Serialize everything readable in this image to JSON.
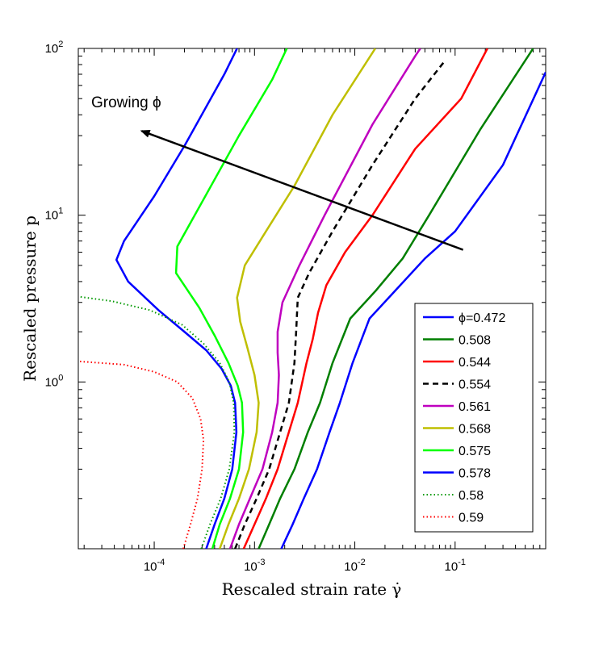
{
  "chart_data": {
    "type": "line",
    "xlabel": "Rescaled strain rate γ̇",
    "ylabel": "Rescaled pressure p",
    "x_scale": "log",
    "y_scale": "log",
    "xlim": [
      1.75e-05,
      0.8
    ],
    "ylim": [
      0.1,
      100
    ],
    "grid": false,
    "legend_position": "right-middle",
    "x_ticks": [
      {
        "value": 0.0001,
        "base": "10",
        "exp": "-4"
      },
      {
        "value": 0.001,
        "base": "10",
        "exp": "-3"
      },
      {
        "value": 0.01,
        "base": "10",
        "exp": "-2"
      },
      {
        "value": 0.1,
        "base": "10",
        "exp": "-1"
      }
    ],
    "y_ticks": [
      {
        "value": 1,
        "base": "10",
        "exp": "0"
      },
      {
        "value": 10,
        "base": "10",
        "exp": "1"
      },
      {
        "value": 100,
        "base": "10",
        "exp": "2"
      }
    ],
    "annotation": {
      "text": "Growing ϕ",
      "arrow_from": [
        0.12,
        6.2
      ],
      "arrow_to": [
        7.5e-05,
        32
      ]
    },
    "series": [
      {
        "name": "ϕ=0.472",
        "color": "#0000ff",
        "style": "solid",
        "points": [
          [
            0.00185,
            0.1
          ],
          [
            0.0024,
            0.14
          ],
          [
            0.0031,
            0.2
          ],
          [
            0.0042,
            0.3
          ],
          [
            0.0056,
            0.5
          ],
          [
            0.0071,
            0.75
          ],
          [
            0.0095,
            1.3
          ],
          [
            0.014,
            2.4
          ],
          [
            0.025,
            3.5
          ],
          [
            0.05,
            5.5
          ],
          [
            0.1,
            8
          ],
          [
            0.3,
            20
          ],
          [
            0.8,
            72
          ]
        ]
      },
      {
        "name": "0.508",
        "color": "#007f00",
        "style": "solid",
        "points": [
          [
            0.0011,
            0.1
          ],
          [
            0.0014,
            0.14
          ],
          [
            0.0018,
            0.2
          ],
          [
            0.0025,
            0.3
          ],
          [
            0.0034,
            0.5
          ],
          [
            0.0045,
            0.75
          ],
          [
            0.006,
            1.3
          ],
          [
            0.009,
            2.4
          ],
          [
            0.016,
            3.5
          ],
          [
            0.03,
            5.5
          ],
          [
            0.055,
            10
          ],
          [
            0.18,
            33
          ],
          [
            0.6,
            100
          ]
        ]
      },
      {
        "name": "0.544",
        "color": "#ff0000",
        "style": "solid",
        "points": [
          [
            0.00078,
            0.1
          ],
          [
            0.001,
            0.14
          ],
          [
            0.0013,
            0.2
          ],
          [
            0.0017,
            0.3
          ],
          [
            0.0022,
            0.5
          ],
          [
            0.0027,
            0.75
          ],
          [
            0.0033,
            1.3
          ],
          [
            0.0038,
            1.8
          ],
          [
            0.0043,
            2.6
          ],
          [
            0.0052,
            3.8
          ],
          [
            0.008,
            6
          ],
          [
            0.015,
            10
          ],
          [
            0.04,
            25
          ],
          [
            0.115,
            50
          ],
          [
            0.21,
            100
          ]
        ]
      },
      {
        "name": "0.554",
        "color": "#000000",
        "style": "dashed",
        "points": [
          [
            0.00064,
            0.1
          ],
          [
            0.0008,
            0.14
          ],
          [
            0.00105,
            0.2
          ],
          [
            0.0014,
            0.3
          ],
          [
            0.0018,
            0.5
          ],
          [
            0.0022,
            0.75
          ],
          [
            0.0025,
            1.3
          ],
          [
            0.0026,
            2
          ],
          [
            0.0027,
            3.2
          ],
          [
            0.0035,
            4.5
          ],
          [
            0.006,
            8
          ],
          [
            0.015,
            20
          ],
          [
            0.04,
            50
          ],
          [
            0.08,
            85
          ]
        ]
      },
      {
        "name": "0.561",
        "color": "#bf00bf",
        "style": "solid",
        "points": [
          [
            0.00057,
            0.1
          ],
          [
            0.0007,
            0.14
          ],
          [
            0.0009,
            0.2
          ],
          [
            0.0012,
            0.3
          ],
          [
            0.0015,
            0.5
          ],
          [
            0.0017,
            0.75
          ],
          [
            0.00175,
            1.1
          ],
          [
            0.0017,
            1.5
          ],
          [
            0.0017,
            2
          ],
          [
            0.0019,
            3
          ],
          [
            0.0028,
            5
          ],
          [
            0.005,
            10
          ],
          [
            0.015,
            35
          ],
          [
            0.04,
            90
          ],
          [
            0.045,
            100
          ]
        ]
      },
      {
        "name": "0.568",
        "color": "#bfbf00",
        "style": "solid",
        "points": [
          [
            0.00045,
            0.1
          ],
          [
            0.00055,
            0.14
          ],
          [
            0.0007,
            0.2
          ],
          [
            0.00088,
            0.3
          ],
          [
            0.00105,
            0.5
          ],
          [
            0.0011,
            0.75
          ],
          [
            0.001,
            1.1
          ],
          [
            0.00085,
            1.6
          ],
          [
            0.00072,
            2.3
          ],
          [
            0.00067,
            3.2
          ],
          [
            0.0008,
            5
          ],
          [
            0.0013,
            8
          ],
          [
            0.0025,
            15
          ],
          [
            0.006,
            40
          ],
          [
            0.016,
            100
          ]
        ]
      },
      {
        "name": "0.575",
        "color": "#00ff00",
        "style": "solid",
        "points": [
          [
            0.00038,
            0.1
          ],
          [
            0.00045,
            0.14
          ],
          [
            0.00057,
            0.2
          ],
          [
            0.0007,
            0.3
          ],
          [
            0.00077,
            0.5
          ],
          [
            0.00075,
            0.75
          ],
          [
            0.00068,
            0.95
          ],
          [
            0.00055,
            1.3
          ],
          [
            0.0004,
            1.9
          ],
          [
            0.00028,
            2.8
          ],
          [
            0.000165,
            4.5
          ],
          [
            0.00017,
            6.5
          ],
          [
            0.0003,
            12
          ],
          [
            0.0007,
            30
          ],
          [
            0.0015,
            65
          ],
          [
            0.0021,
            100
          ]
        ]
      },
      {
        "name": "0.578",
        "color": "#0000ff",
        "style": "solid",
        "points": [
          [
            0.00033,
            0.1
          ],
          [
            0.0004,
            0.14
          ],
          [
            0.0005,
            0.2
          ],
          [
            0.0006,
            0.3
          ],
          [
            0.00066,
            0.5
          ],
          [
            0.00064,
            0.75
          ],
          [
            0.00058,
            0.95
          ],
          [
            0.00047,
            1.2
          ],
          [
            0.00033,
            1.55
          ],
          [
            0.0002,
            2
          ],
          [
            0.00011,
            2.7
          ],
          [
            5.5e-05,
            4
          ],
          [
            4.2e-05,
            5.4
          ],
          [
            5e-05,
            7
          ],
          [
            0.0001,
            13
          ],
          [
            0.0002,
            26
          ],
          [
            0.0005,
            70
          ],
          [
            0.00067,
            100
          ]
        ]
      },
      {
        "name": "0.58",
        "color": "#009900",
        "style": "dotted",
        "points": [
          [
            0.000295,
            0.1
          ],
          [
            0.00036,
            0.14
          ],
          [
            0.00046,
            0.2
          ],
          [
            0.00056,
            0.3
          ],
          [
            0.00063,
            0.5
          ],
          [
            0.00062,
            0.75
          ],
          [
            0.00056,
            1
          ],
          [
            0.00045,
            1.3
          ],
          [
            0.00031,
            1.7
          ],
          [
            0.00019,
            2.2
          ],
          [
            9e-05,
            2.7
          ],
          [
            3.8e-05,
            3.05
          ],
          [
            1.75e-05,
            3.25
          ]
        ]
      },
      {
        "name": "0.59",
        "color": "#ff0000",
        "style": "dotted",
        "points": [
          [
            0.000195,
            0.1
          ],
          [
            0.00023,
            0.14
          ],
          [
            0.00027,
            0.2
          ],
          [
            0.0003,
            0.3
          ],
          [
            0.00031,
            0.45
          ],
          [
            0.00029,
            0.6
          ],
          [
            0.00024,
            0.8
          ],
          [
            0.00017,
            1
          ],
          [
            0.0001,
            1.15
          ],
          [
            5e-05,
            1.27
          ],
          [
            1.75e-05,
            1.33
          ]
        ]
      }
    ]
  }
}
